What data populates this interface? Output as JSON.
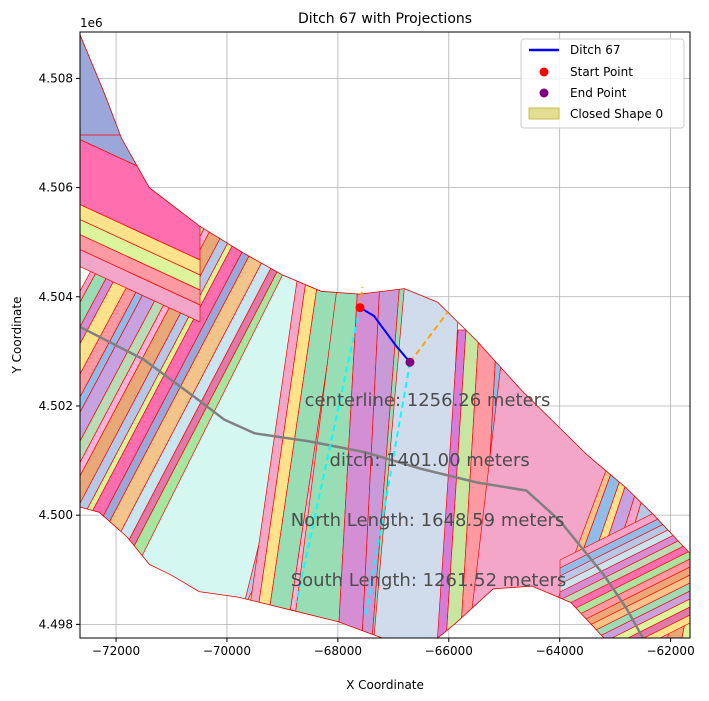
{
  "chart_data": {
    "type": "map",
    "title": "Ditch 67 with Projections",
    "xlabel": "X Coordinate",
    "ylabel": "Y Coordinate",
    "y_offset_label": "1e6",
    "xlim": [
      -72650,
      -61650
    ],
    "ylim": [
      4497750,
      4508850
    ],
    "grid": true,
    "legend_placement": "top-right",
    "x_ticks": [
      {
        "value": -72000,
        "label": "−72000"
      },
      {
        "value": -70000,
        "label": "−70000"
      },
      {
        "value": -68000,
        "label": "−68000"
      },
      {
        "value": -66000,
        "label": "−66000"
      },
      {
        "value": -64000,
        "label": "−64000"
      },
      {
        "value": -62000,
        "label": "−62000"
      }
    ],
    "y_ticks": [
      {
        "value": 4498000,
        "label": "4.498"
      },
      {
        "value": 4500000,
        "label": "4.500"
      },
      {
        "value": 4502000,
        "label": "4.502"
      },
      {
        "value": 4504000,
        "label": "4.504"
      },
      {
        "value": 4506000,
        "label": "4.506"
      },
      {
        "value": 4508000,
        "label": "4.508"
      }
    ],
    "legend": [
      {
        "label": "Ditch 67",
        "kind": "line",
        "color": "#0000ff"
      },
      {
        "label": "Start Point",
        "kind": "dot",
        "color": "#ff0000"
      },
      {
        "label": "End Point",
        "kind": "dot",
        "color": "#800080"
      },
      {
        "label": "Closed Shape 0",
        "kind": "patch",
        "color": "#d8d16e"
      }
    ],
    "ditch": {
      "name": "Ditch 67",
      "color": "#0000ff",
      "points": [
        [
          -67600,
          4503800
        ],
        [
          -67350,
          4503650
        ],
        [
          -66950,
          4503100
        ],
        [
          -66700,
          4502800
        ]
      ]
    },
    "start_point": {
      "x": -67600,
      "y": 4503800,
      "color": "#ff0000"
    },
    "end_point": {
      "x": -66700,
      "y": 4502800,
      "color": "#800080"
    },
    "projections": [
      {
        "points": [
          [
            -67600,
            4503800
          ],
          [
            -67560,
            4504180
          ]
        ],
        "color": "#ffa500"
      },
      {
        "points": [
          [
            -66700,
            4502800
          ],
          [
            -66020,
            4503720
          ]
        ],
        "color": "#ffa500"
      },
      {
        "points": [
          [
            -67600,
            4503800
          ],
          [
            -68750,
            4498400
          ]
        ],
        "color": "#00ffff"
      },
      {
        "points": [
          [
            -66700,
            4502800
          ],
          [
            -67500,
            4498150
          ]
        ],
        "color": "#00ffff"
      }
    ],
    "centerline": {
      "color": "#808080",
      "points": [
        [
          -72650,
          4503450
        ],
        [
          -71500,
          4502850
        ],
        [
          -70500,
          4502100
        ],
        [
          -70050,
          4501750
        ],
        [
          -69500,
          4501500
        ],
        [
          -68500,
          4501350
        ],
        [
          -67500,
          4501150
        ],
        [
          -66500,
          4500850
        ],
        [
          -65500,
          4500600
        ],
        [
          -64600,
          4500450
        ],
        [
          -64000,
          4499900
        ],
        [
          -63200,
          4498900
        ],
        [
          -62800,
          4498300
        ],
        [
          -62500,
          4497750
        ]
      ]
    },
    "region_outline": [
      [
        -72650,
        4508800
      ],
      [
        -72200,
        4507700
      ],
      [
        -71900,
        4506900
      ],
      [
        -71400,
        4506000
      ],
      [
        -70500,
        4505300
      ],
      [
        -69700,
        4504800
      ],
      [
        -69000,
        4504400
      ],
      [
        -68300,
        4504100
      ],
      [
        -67600,
        4504050
      ],
      [
        -66800,
        4504150
      ],
      [
        -66200,
        4503900
      ],
      [
        -65500,
        4503200
      ],
      [
        -64700,
        4502300
      ],
      [
        -64100,
        4501700
      ],
      [
        -63500,
        4501100
      ],
      [
        -62800,
        4500500
      ],
      [
        -62300,
        4500000
      ],
      [
        -61650,
        4499300
      ],
      [
        -61650,
        4497750
      ],
      [
        -63200,
        4497750
      ],
      [
        -63800,
        4498400
      ],
      [
        -64500,
        4498700
      ],
      [
        -65200,
        4498650
      ],
      [
        -65900,
        4498000
      ],
      [
        -66200,
        4497750
      ],
      [
        -67200,
        4497750
      ],
      [
        -68000,
        4498050
      ],
      [
        -68800,
        4498250
      ],
      [
        -69800,
        4498500
      ],
      [
        -70500,
        4498600
      ],
      [
        -71000,
        4498900
      ],
      [
        -71400,
        4499100
      ],
      [
        -71800,
        4499600
      ],
      [
        -72300,
        4500050
      ],
      [
        -72650,
        4500150
      ]
    ],
    "strips": {
      "stroke": "#ff0000",
      "palette": [
        "#f4a6c8",
        "#98ddb4",
        "#d48fd4",
        "#ffe28a",
        "#ff9aa2",
        "#8fbce8",
        "#c6a3e0",
        "#b8ddb4",
        "#ffb3d9",
        "#e8a878",
        "#b5c8e8",
        "#ddf59a",
        "#ff6fb0",
        "#9aa7d8",
        "#f5c48a",
        "#c8e6f0",
        "#e07aa8",
        "#a8e6a0"
      ],
      "closed_shape_color": "#d8d16e",
      "wide_panels": [
        {
          "index": 1,
          "color": "#d4f7f2"
        },
        {
          "index": 2,
          "color": "#d0dceb"
        },
        {
          "index": 3,
          "color": "#f4a6c8"
        }
      ]
    },
    "annotations": [
      {
        "text": "centerline: 1256.26 meters",
        "x": -68600,
        "y": 4502000
      },
      {
        "text": "ditch: 1401.00 meters",
        "x": -68150,
        "y": 4500900
      },
      {
        "text": "North Length: 1648.59 meters",
        "x": -68850,
        "y": 4499800
      },
      {
        "text": "South Length: 1261.52 meters",
        "x": -68850,
        "y": 4498700
      }
    ]
  }
}
